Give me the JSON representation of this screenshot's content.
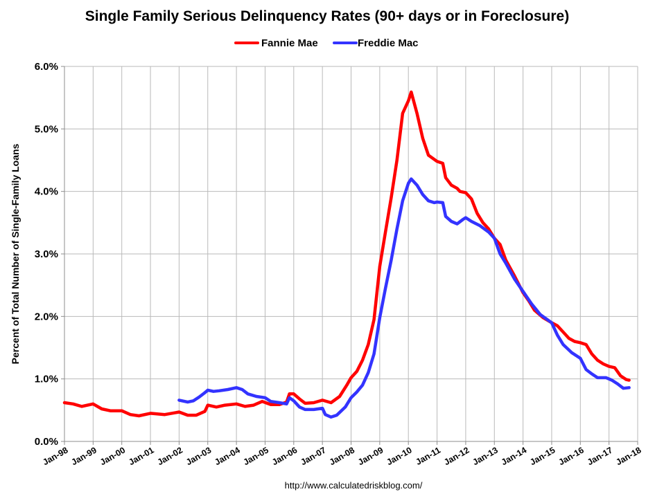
{
  "chart_data": {
    "type": "line",
    "title": "Single Family Serious Delinquency Rates (90+ days or in Foreclosure)",
    "xlabel": "",
    "ylabel": "Percent of Total Number of Single-Family Loans",
    "ylim": [
      0,
      6
    ],
    "xlim": [
      1998.0,
      2018.0
    ],
    "yticks": [
      "0.0%",
      "1.0%",
      "2.0%",
      "3.0%",
      "4.0%",
      "5.0%",
      "6.0%"
    ],
    "xticks": [
      "Jan-98",
      "Jan-99",
      "Jan-00",
      "Jan-01",
      "Jan-02",
      "Jan-03",
      "Jan-04",
      "Jan-05",
      "Jan-06",
      "Jan-07",
      "Jan-08",
      "Jan-09",
      "Jan-10",
      "Jan-11",
      "Jan-12",
      "Jan-13",
      "Jan-14",
      "Jan-15",
      "Jan-16",
      "Jan-17",
      "Jan-18"
    ],
    "grid": true,
    "legend_position": "top-center",
    "source_text": "http://www.calculatedriskblog.com/",
    "series": [
      {
        "name": "Fannie Mae",
        "color": "#ff0000",
        "points": [
          [
            1998.0,
            0.62
          ],
          [
            1998.3,
            0.6
          ],
          [
            1998.6,
            0.56
          ],
          [
            1999.0,
            0.6
          ],
          [
            1999.3,
            0.52
          ],
          [
            1999.6,
            0.49
          ],
          [
            2000.0,
            0.49
          ],
          [
            2000.3,
            0.43
          ],
          [
            2000.6,
            0.41
          ],
          [
            2001.0,
            0.45
          ],
          [
            2001.5,
            0.43
          ],
          [
            2002.0,
            0.47
          ],
          [
            2002.3,
            0.42
          ],
          [
            2002.6,
            0.42
          ],
          [
            2002.9,
            0.48
          ],
          [
            2003.0,
            0.58
          ],
          [
            2003.3,
            0.55
          ],
          [
            2003.6,
            0.58
          ],
          [
            2004.0,
            0.6
          ],
          [
            2004.3,
            0.56
          ],
          [
            2004.6,
            0.58
          ],
          [
            2004.9,
            0.64
          ],
          [
            2005.2,
            0.59
          ],
          [
            2005.5,
            0.59
          ],
          [
            2005.75,
            0.63
          ],
          [
            2005.85,
            0.76
          ],
          [
            2006.0,
            0.76
          ],
          [
            2006.2,
            0.68
          ],
          [
            2006.4,
            0.61
          ],
          [
            2006.7,
            0.62
          ],
          [
            2007.0,
            0.66
          ],
          [
            2007.3,
            0.62
          ],
          [
            2007.6,
            0.72
          ],
          [
            2007.85,
            0.9
          ],
          [
            2008.0,
            1.02
          ],
          [
            2008.2,
            1.12
          ],
          [
            2008.4,
            1.3
          ],
          [
            2008.6,
            1.55
          ],
          [
            2008.8,
            1.95
          ],
          [
            2009.0,
            2.8
          ],
          [
            2009.2,
            3.35
          ],
          [
            2009.4,
            3.9
          ],
          [
            2009.6,
            4.5
          ],
          [
            2009.8,
            5.25
          ],
          [
            2010.0,
            5.45
          ],
          [
            2010.1,
            5.59
          ],
          [
            2010.3,
            5.25
          ],
          [
            2010.5,
            4.85
          ],
          [
            2010.7,
            4.58
          ],
          [
            2011.0,
            4.48
          ],
          [
            2011.2,
            4.45
          ],
          [
            2011.3,
            4.22
          ],
          [
            2011.5,
            4.1
          ],
          [
            2011.7,
            4.05
          ],
          [
            2011.8,
            4.0
          ],
          [
            2012.0,
            3.98
          ],
          [
            2012.2,
            3.88
          ],
          [
            2012.4,
            3.65
          ],
          [
            2012.6,
            3.5
          ],
          [
            2012.8,
            3.4
          ],
          [
            2013.0,
            3.25
          ],
          [
            2013.2,
            3.15
          ],
          [
            2013.4,
            2.9
          ],
          [
            2013.7,
            2.65
          ],
          [
            2014.0,
            2.38
          ],
          [
            2014.2,
            2.25
          ],
          [
            2014.4,
            2.1
          ],
          [
            2014.7,
            1.98
          ],
          [
            2015.0,
            1.9
          ],
          [
            2015.2,
            1.85
          ],
          [
            2015.4,
            1.75
          ],
          [
            2015.6,
            1.65
          ],
          [
            2015.8,
            1.6
          ],
          [
            2016.0,
            1.58
          ],
          [
            2016.2,
            1.55
          ],
          [
            2016.4,
            1.4
          ],
          [
            2016.6,
            1.3
          ],
          [
            2016.8,
            1.24
          ],
          [
            2017.0,
            1.2
          ],
          [
            2017.2,
            1.18
          ],
          [
            2017.4,
            1.05
          ],
          [
            2017.6,
            0.99
          ],
          [
            2017.7,
            0.98
          ]
        ]
      },
      {
        "name": "Freddie Mac",
        "color": "#3333ff",
        "points": [
          [
            2002.0,
            0.66
          ],
          [
            2002.3,
            0.63
          ],
          [
            2002.5,
            0.65
          ],
          [
            2002.7,
            0.71
          ],
          [
            2002.9,
            0.78
          ],
          [
            2003.0,
            0.82
          ],
          [
            2003.2,
            0.8
          ],
          [
            2003.4,
            0.81
          ],
          [
            2003.7,
            0.83
          ],
          [
            2004.0,
            0.86
          ],
          [
            2004.2,
            0.83
          ],
          [
            2004.4,
            0.76
          ],
          [
            2004.7,
            0.72
          ],
          [
            2005.0,
            0.7
          ],
          [
            2005.2,
            0.64
          ],
          [
            2005.5,
            0.62
          ],
          [
            2005.75,
            0.6
          ],
          [
            2005.85,
            0.7
          ],
          [
            2006.0,
            0.65
          ],
          [
            2006.2,
            0.55
          ],
          [
            2006.4,
            0.51
          ],
          [
            2006.7,
            0.51
          ],
          [
            2007.0,
            0.53
          ],
          [
            2007.1,
            0.43
          ],
          [
            2007.3,
            0.39
          ],
          [
            2007.5,
            0.42
          ],
          [
            2007.8,
            0.55
          ],
          [
            2008.0,
            0.7
          ],
          [
            2008.2,
            0.79
          ],
          [
            2008.4,
            0.9
          ],
          [
            2008.6,
            1.1
          ],
          [
            2008.8,
            1.4
          ],
          [
            2009.0,
            1.98
          ],
          [
            2009.2,
            2.45
          ],
          [
            2009.4,
            2.9
          ],
          [
            2009.6,
            3.4
          ],
          [
            2009.8,
            3.85
          ],
          [
            2010.0,
            4.13
          ],
          [
            2010.1,
            4.2
          ],
          [
            2010.3,
            4.1
          ],
          [
            2010.5,
            3.95
          ],
          [
            2010.7,
            3.85
          ],
          [
            2010.9,
            3.82
          ],
          [
            2011.0,
            3.83
          ],
          [
            2011.2,
            3.82
          ],
          [
            2011.3,
            3.6
          ],
          [
            2011.5,
            3.52
          ],
          [
            2011.7,
            3.48
          ],
          [
            2011.9,
            3.55
          ],
          [
            2012.0,
            3.58
          ],
          [
            2012.2,
            3.52
          ],
          [
            2012.5,
            3.45
          ],
          [
            2012.8,
            3.35
          ],
          [
            2013.0,
            3.25
          ],
          [
            2013.2,
            3.0
          ],
          [
            2013.4,
            2.85
          ],
          [
            2013.7,
            2.6
          ],
          [
            2014.0,
            2.4
          ],
          [
            2014.3,
            2.2
          ],
          [
            2014.6,
            2.03
          ],
          [
            2015.0,
            1.9
          ],
          [
            2015.2,
            1.7
          ],
          [
            2015.4,
            1.55
          ],
          [
            2015.7,
            1.42
          ],
          [
            2016.0,
            1.33
          ],
          [
            2016.2,
            1.15
          ],
          [
            2016.4,
            1.08
          ],
          [
            2016.6,
            1.02
          ],
          [
            2016.9,
            1.02
          ],
          [
            2017.1,
            0.98
          ],
          [
            2017.3,
            0.92
          ],
          [
            2017.5,
            0.85
          ],
          [
            2017.7,
            0.86
          ]
        ]
      }
    ]
  }
}
